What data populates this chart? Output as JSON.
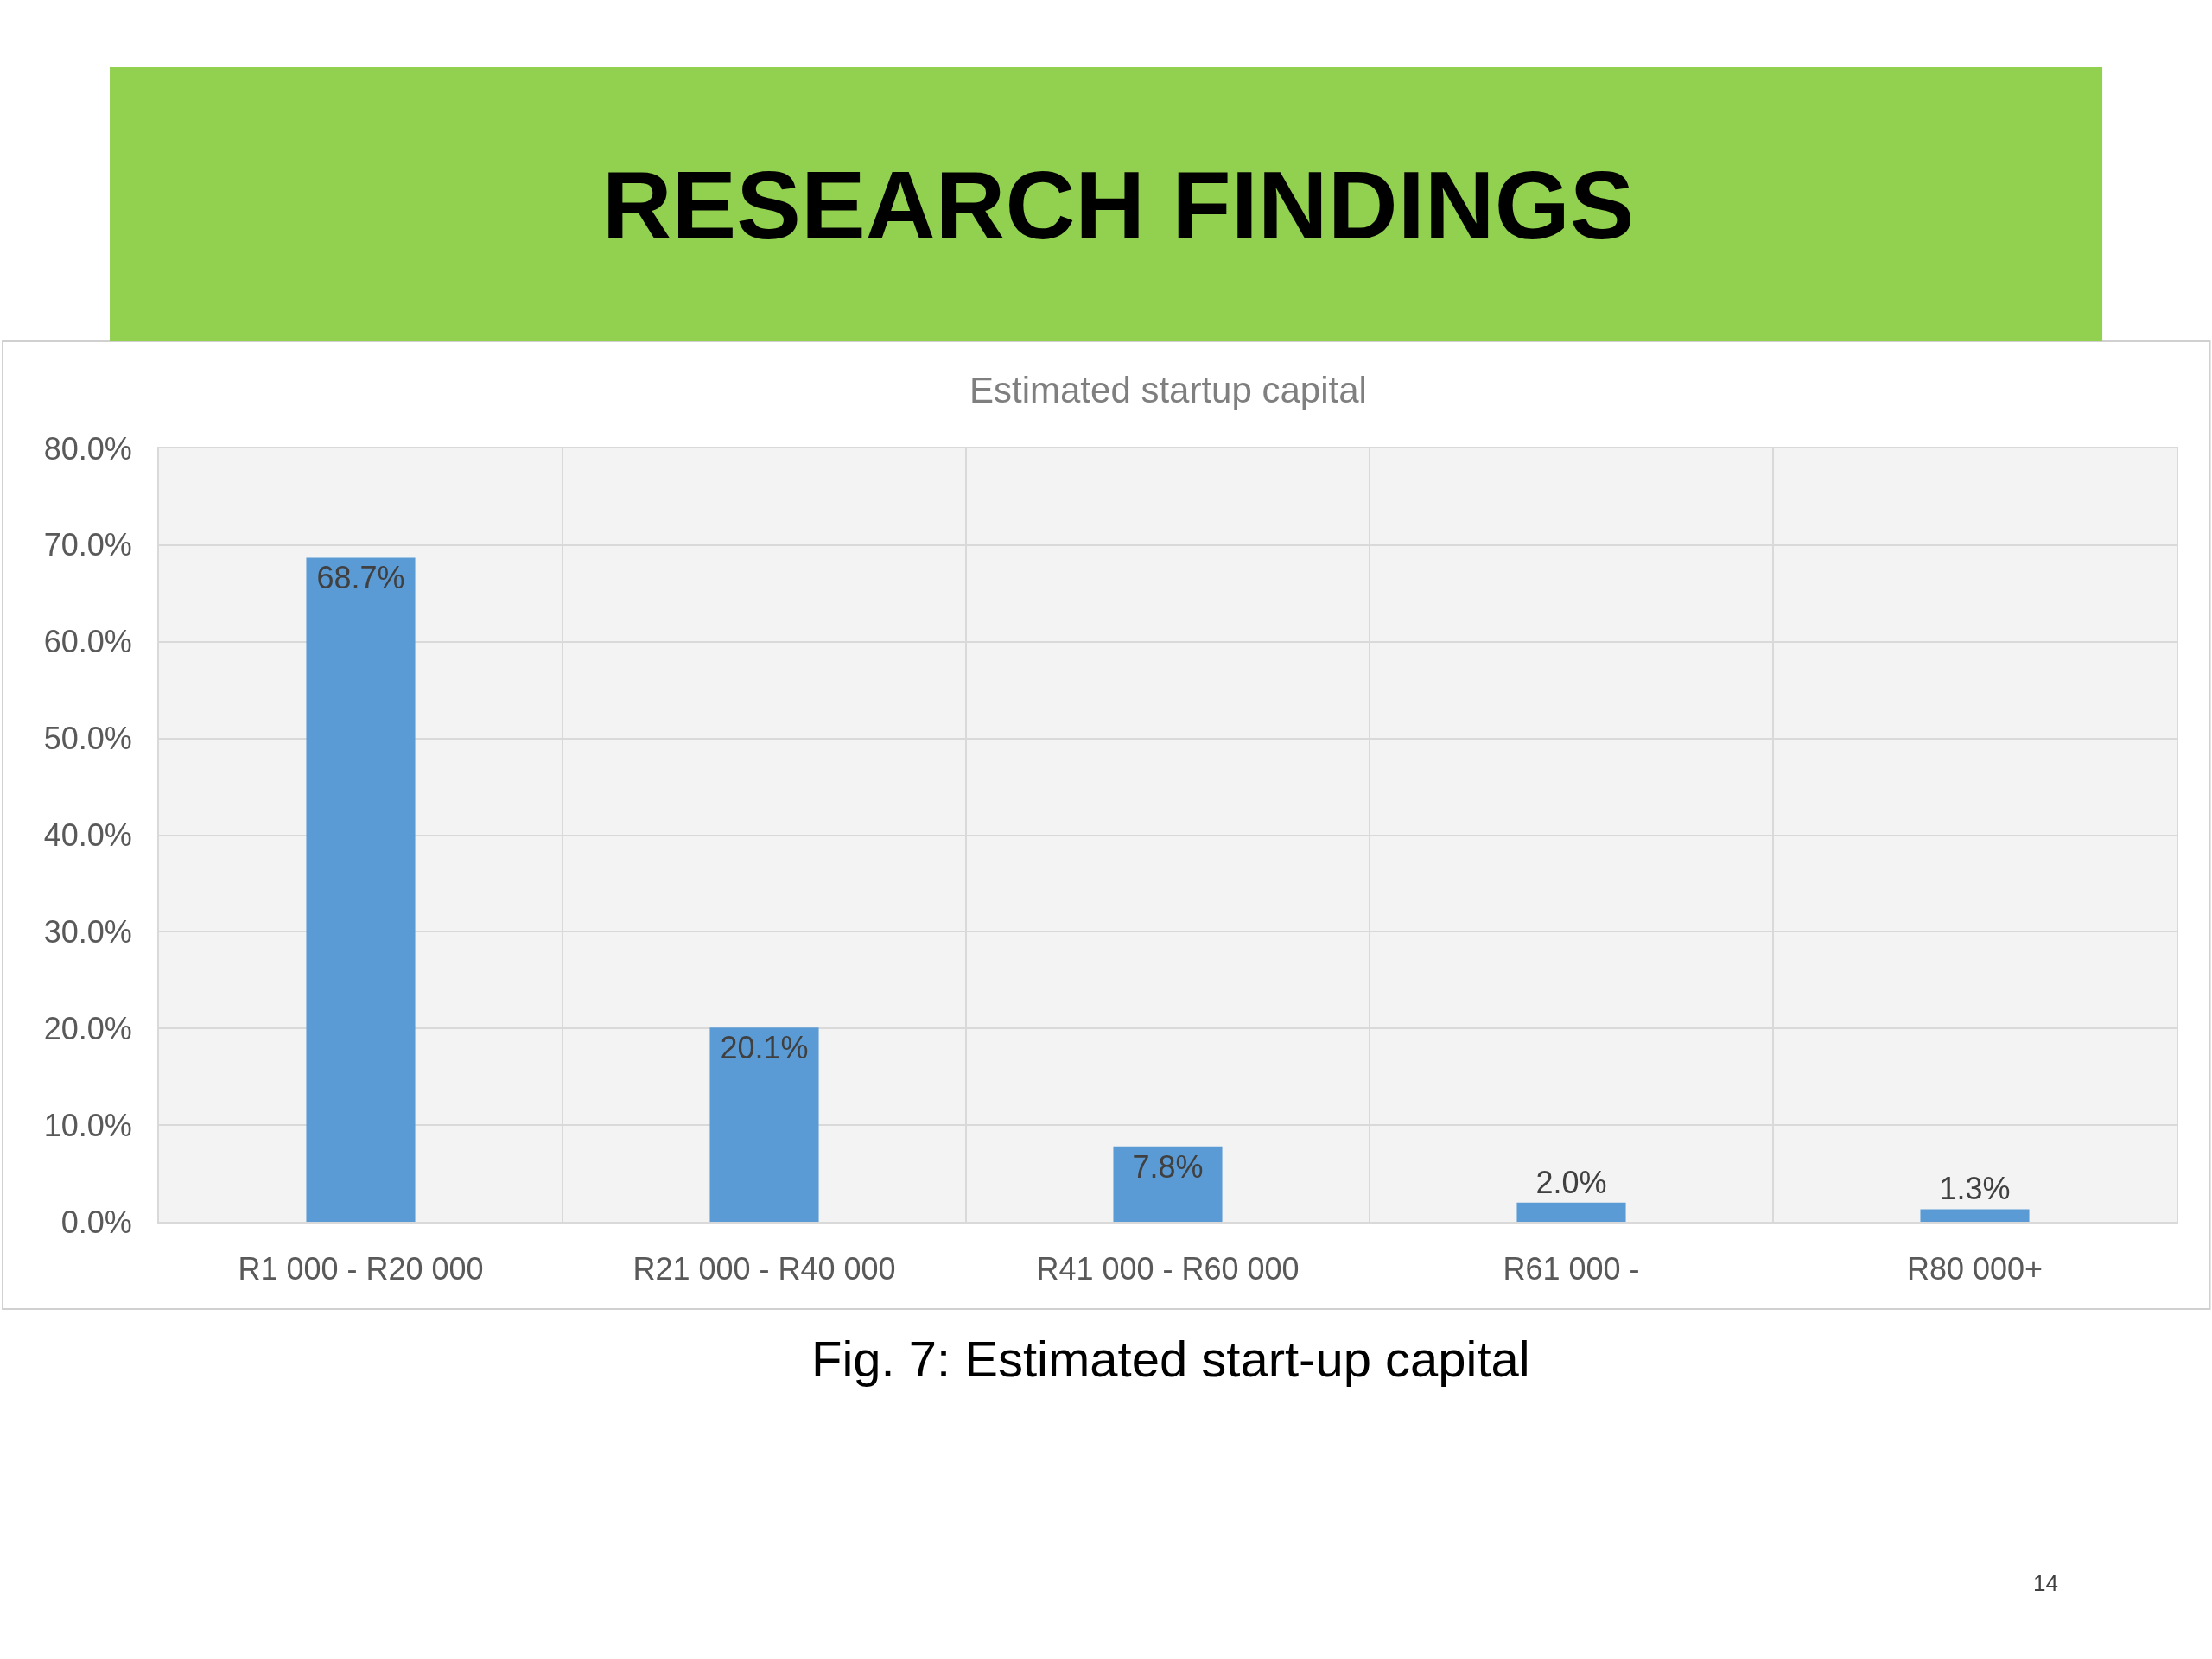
{
  "chart_data": {
    "type": "bar",
    "title": "RESEARCH FINDINGS",
    "subtitle": "Estimated startup capital",
    "categories": [
      "R1 000 - R20 000",
      "R21 000 - R40 000",
      "R41 000 - R60 000",
      "R61 000 -",
      "R80 000+"
    ],
    "values": [
      68.7,
      20.1,
      7.8,
      2.0,
      1.3
    ],
    "color": "#5b9bd5",
    "value_labels": [
      "68.7%",
      "20.1%",
      "7.8%",
      "2.0%",
      "1.3%"
    ],
    "ylim": [
      0,
      80
    ],
    "yticks": [
      {
        "value": 0,
        "label": "0.0%"
      },
      {
        "value": 10,
        "label": "10.0%"
      },
      {
        "value": 20,
        "label": "20.0%"
      },
      {
        "value": 30,
        "label": "30.0%"
      },
      {
        "value": 40,
        "label": "40.0%"
      },
      {
        "value": 50,
        "label": "50.0%"
      },
      {
        "value": 60,
        "label": "60.0%"
      },
      {
        "value": 70,
        "label": "70.0%"
      },
      {
        "value": 80,
        "label": "80.0%"
      }
    ],
    "grid": true,
    "annotations": [
      "Fig. 7: Estimated start-up capital",
      "14"
    ]
  }
}
